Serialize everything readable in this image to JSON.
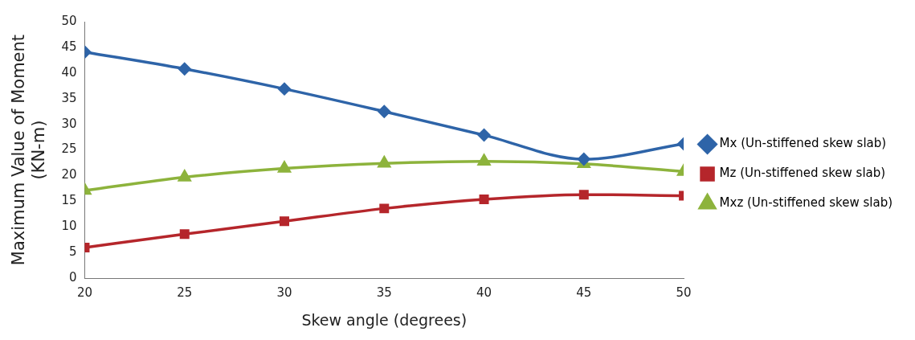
{
  "chart_data": {
    "type": "line",
    "xlabel": "Skew angle (degrees)",
    "ylabel": "Maximum Value of Moment\n(KN-m)",
    "x": [
      20,
      25,
      30,
      35,
      40,
      45,
      50
    ],
    "xlim": [
      20,
      50
    ],
    "xticks": [
      20,
      25,
      30,
      35,
      40,
      45,
      50
    ],
    "ylim": [
      0,
      50
    ],
    "yticks": [
      0,
      5,
      10,
      15,
      20,
      25,
      30,
      35,
      40,
      45,
      50
    ],
    "series": [
      {
        "name": "Mx (Un-stiffened skew slab)",
        "color": "#2e64a8",
        "marker": "diamond",
        "values": [
          44.1,
          40.8,
          36.9,
          32.5,
          27.9,
          23.2,
          26.2
        ]
      },
      {
        "name": "Mz (Un-stiffened skew slab)",
        "color": "#b5262b",
        "marker": "square",
        "values": [
          6.0,
          8.6,
          11.1,
          13.6,
          15.4,
          16.3,
          16.1
        ]
      },
      {
        "name": "Mxz (Un-stiffened skew slab)",
        "color": "#8db33c",
        "marker": "triangle",
        "values": [
          17.1,
          19.7,
          21.4,
          22.4,
          22.8,
          22.3,
          20.8
        ]
      }
    ],
    "grid": false,
    "legend": "right",
    "line_style": "solid"
  }
}
